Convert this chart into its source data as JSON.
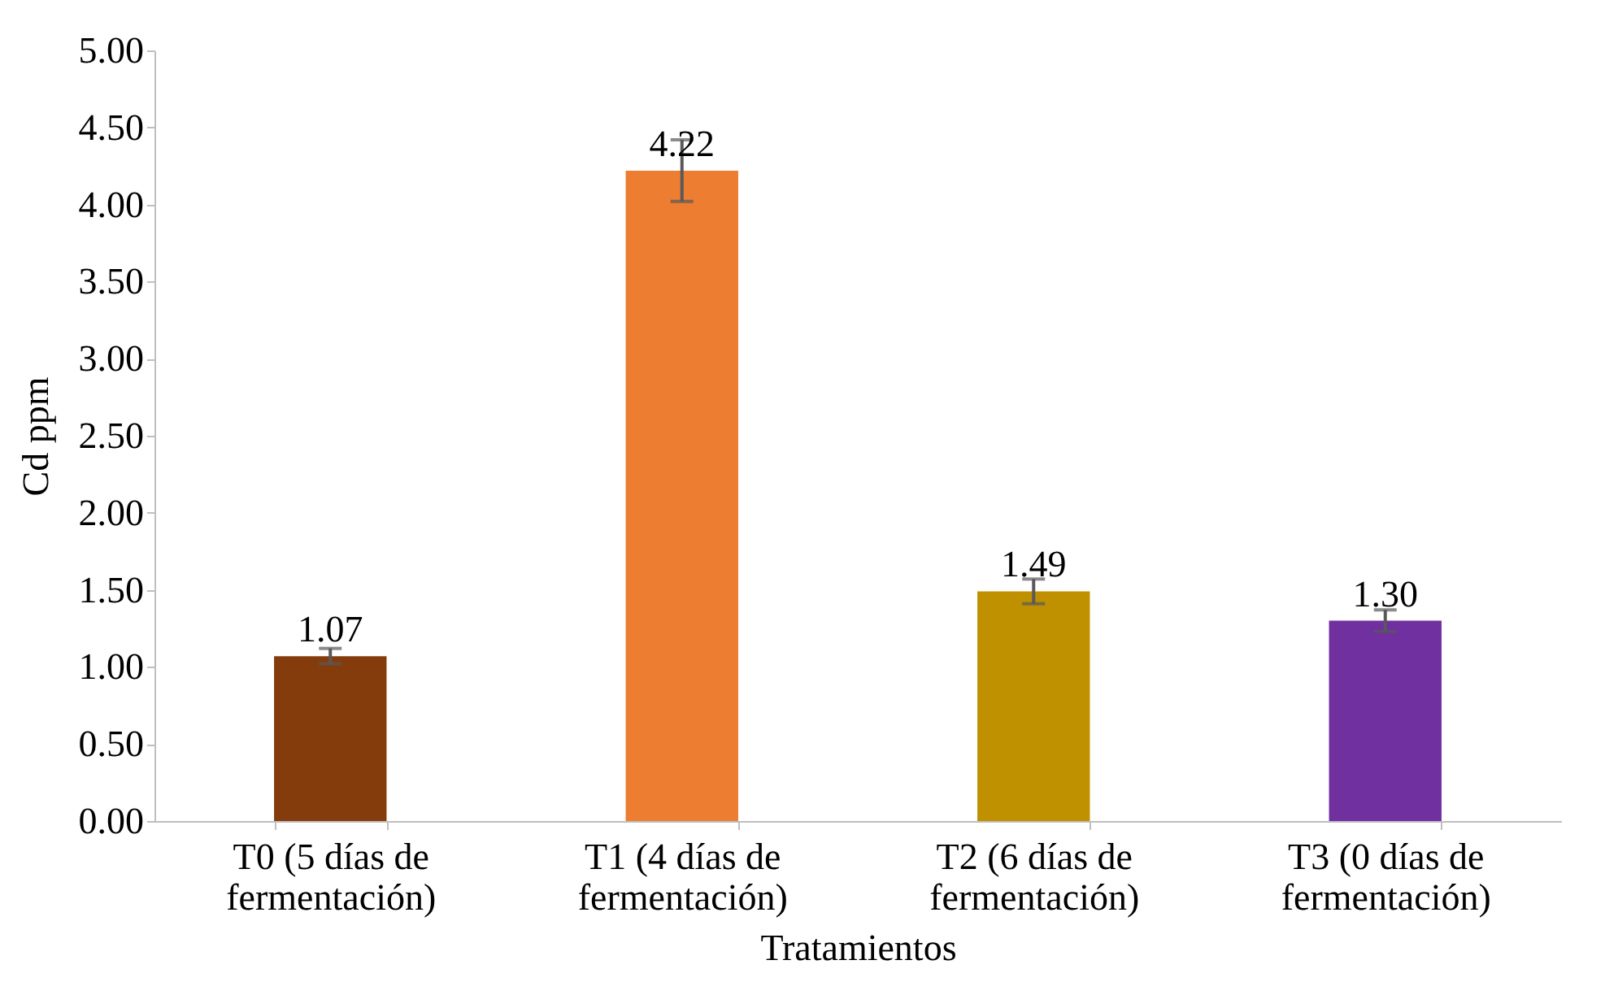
{
  "chart_data": {
    "type": "bar",
    "xlabel": "Tratamientos",
    "ylabel": "Cd ppm",
    "categories": [
      "T0 (5 días de fermentación)",
      "T1 (4 días de fermentación)",
      "T2 (6 días de fermentación)",
      "T3 (0 días de fermentación)"
    ],
    "values": [
      1.07,
      4.22,
      1.49,
      1.3
    ],
    "colors": [
      "#843c0c",
      "#ed7d31",
      "#bf9000",
      "#7030a0"
    ],
    "errors": [
      0.05,
      0.2,
      0.08,
      0.07
    ],
    "ylim": [
      0,
      5
    ],
    "yticks": [
      {
        "value": 0,
        "label": "0.00"
      },
      {
        "value": 0.5,
        "label": "0.50"
      },
      {
        "value": 1,
        "label": "1.00"
      },
      {
        "value": 1.5,
        "label": "1.50"
      },
      {
        "value": 2,
        "label": "2.00"
      },
      {
        "value": 2.5,
        "label": "2.50"
      },
      {
        "value": 3,
        "label": "3.00"
      },
      {
        "value": 3.5,
        "label": "3.50"
      },
      {
        "value": 4,
        "label": "4.00"
      },
      {
        "value": 4.5,
        "label": "4.50"
      },
      {
        "value": 5,
        "label": "5.00"
      }
    ],
    "value_labels": [
      "1.07",
      "4.22",
      "1.49",
      "1.30"
    ],
    "grid": false
  }
}
